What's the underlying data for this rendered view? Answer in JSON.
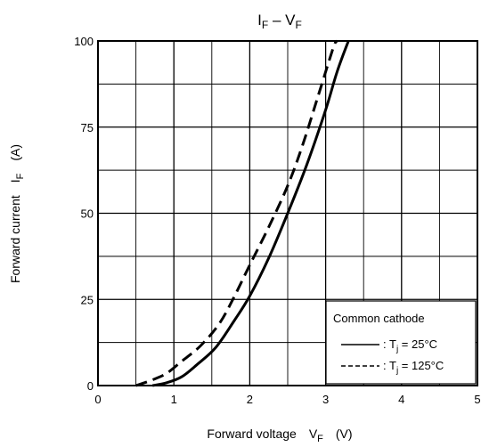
{
  "chart_data": {
    "type": "line",
    "title": {
      "main": "I",
      "main_sub": "F",
      "sep": " – V",
      "sep_sub": "F"
    },
    "xlabel": {
      "text": "Forward voltage",
      "sym": "V",
      "sym_sub": "F",
      "unit": "(V)"
    },
    "ylabel": {
      "text": "Forward current",
      "sym": "I",
      "sym_sub": "F",
      "unit": "(A)"
    },
    "xlim": [
      0,
      5
    ],
    "ylim": [
      0,
      100
    ],
    "x_ticks": [
      "0",
      "1",
      "2",
      "3",
      "4",
      "5"
    ],
    "y_ticks": [
      "0",
      "25",
      "50",
      "75",
      "100"
    ],
    "grid": true,
    "legend": {
      "placement": "bottom-right",
      "title": "Common cathode",
      "entries": [
        {
          "prefix": ": T",
          "sub": "j",
          "suffix": " = 25°C",
          "style": "solid"
        },
        {
          "prefix": ": T",
          "sub": "j",
          "suffix": " = 125°C",
          "style": "dashed"
        }
      ]
    },
    "series": [
      {
        "style": "solid",
        "points": [
          [
            0.72,
            0
          ],
          [
            0.9,
            0.8
          ],
          [
            1.1,
            2.5
          ],
          [
            1.3,
            6
          ],
          [
            1.55,
            11
          ],
          [
            1.8,
            19
          ],
          [
            2.0,
            26
          ],
          [
            2.25,
            37
          ],
          [
            2.5,
            50
          ],
          [
            2.75,
            64
          ],
          [
            3.0,
            80
          ],
          [
            3.15,
            91
          ],
          [
            3.3,
            100
          ]
        ]
      },
      {
        "style": "dashed",
        "points": [
          [
            0.5,
            0
          ],
          [
            0.7,
            1.5
          ],
          [
            0.9,
            3.5
          ],
          [
            1.1,
            7
          ],
          [
            1.35,
            11.5
          ],
          [
            1.6,
            18
          ],
          [
            1.8,
            26
          ],
          [
            2.0,
            35
          ],
          [
            2.25,
            46
          ],
          [
            2.5,
            58
          ],
          [
            2.7,
            70
          ],
          [
            2.9,
            84
          ],
          [
            3.1,
            98
          ],
          [
            3.15,
            100
          ]
        ]
      }
    ]
  }
}
